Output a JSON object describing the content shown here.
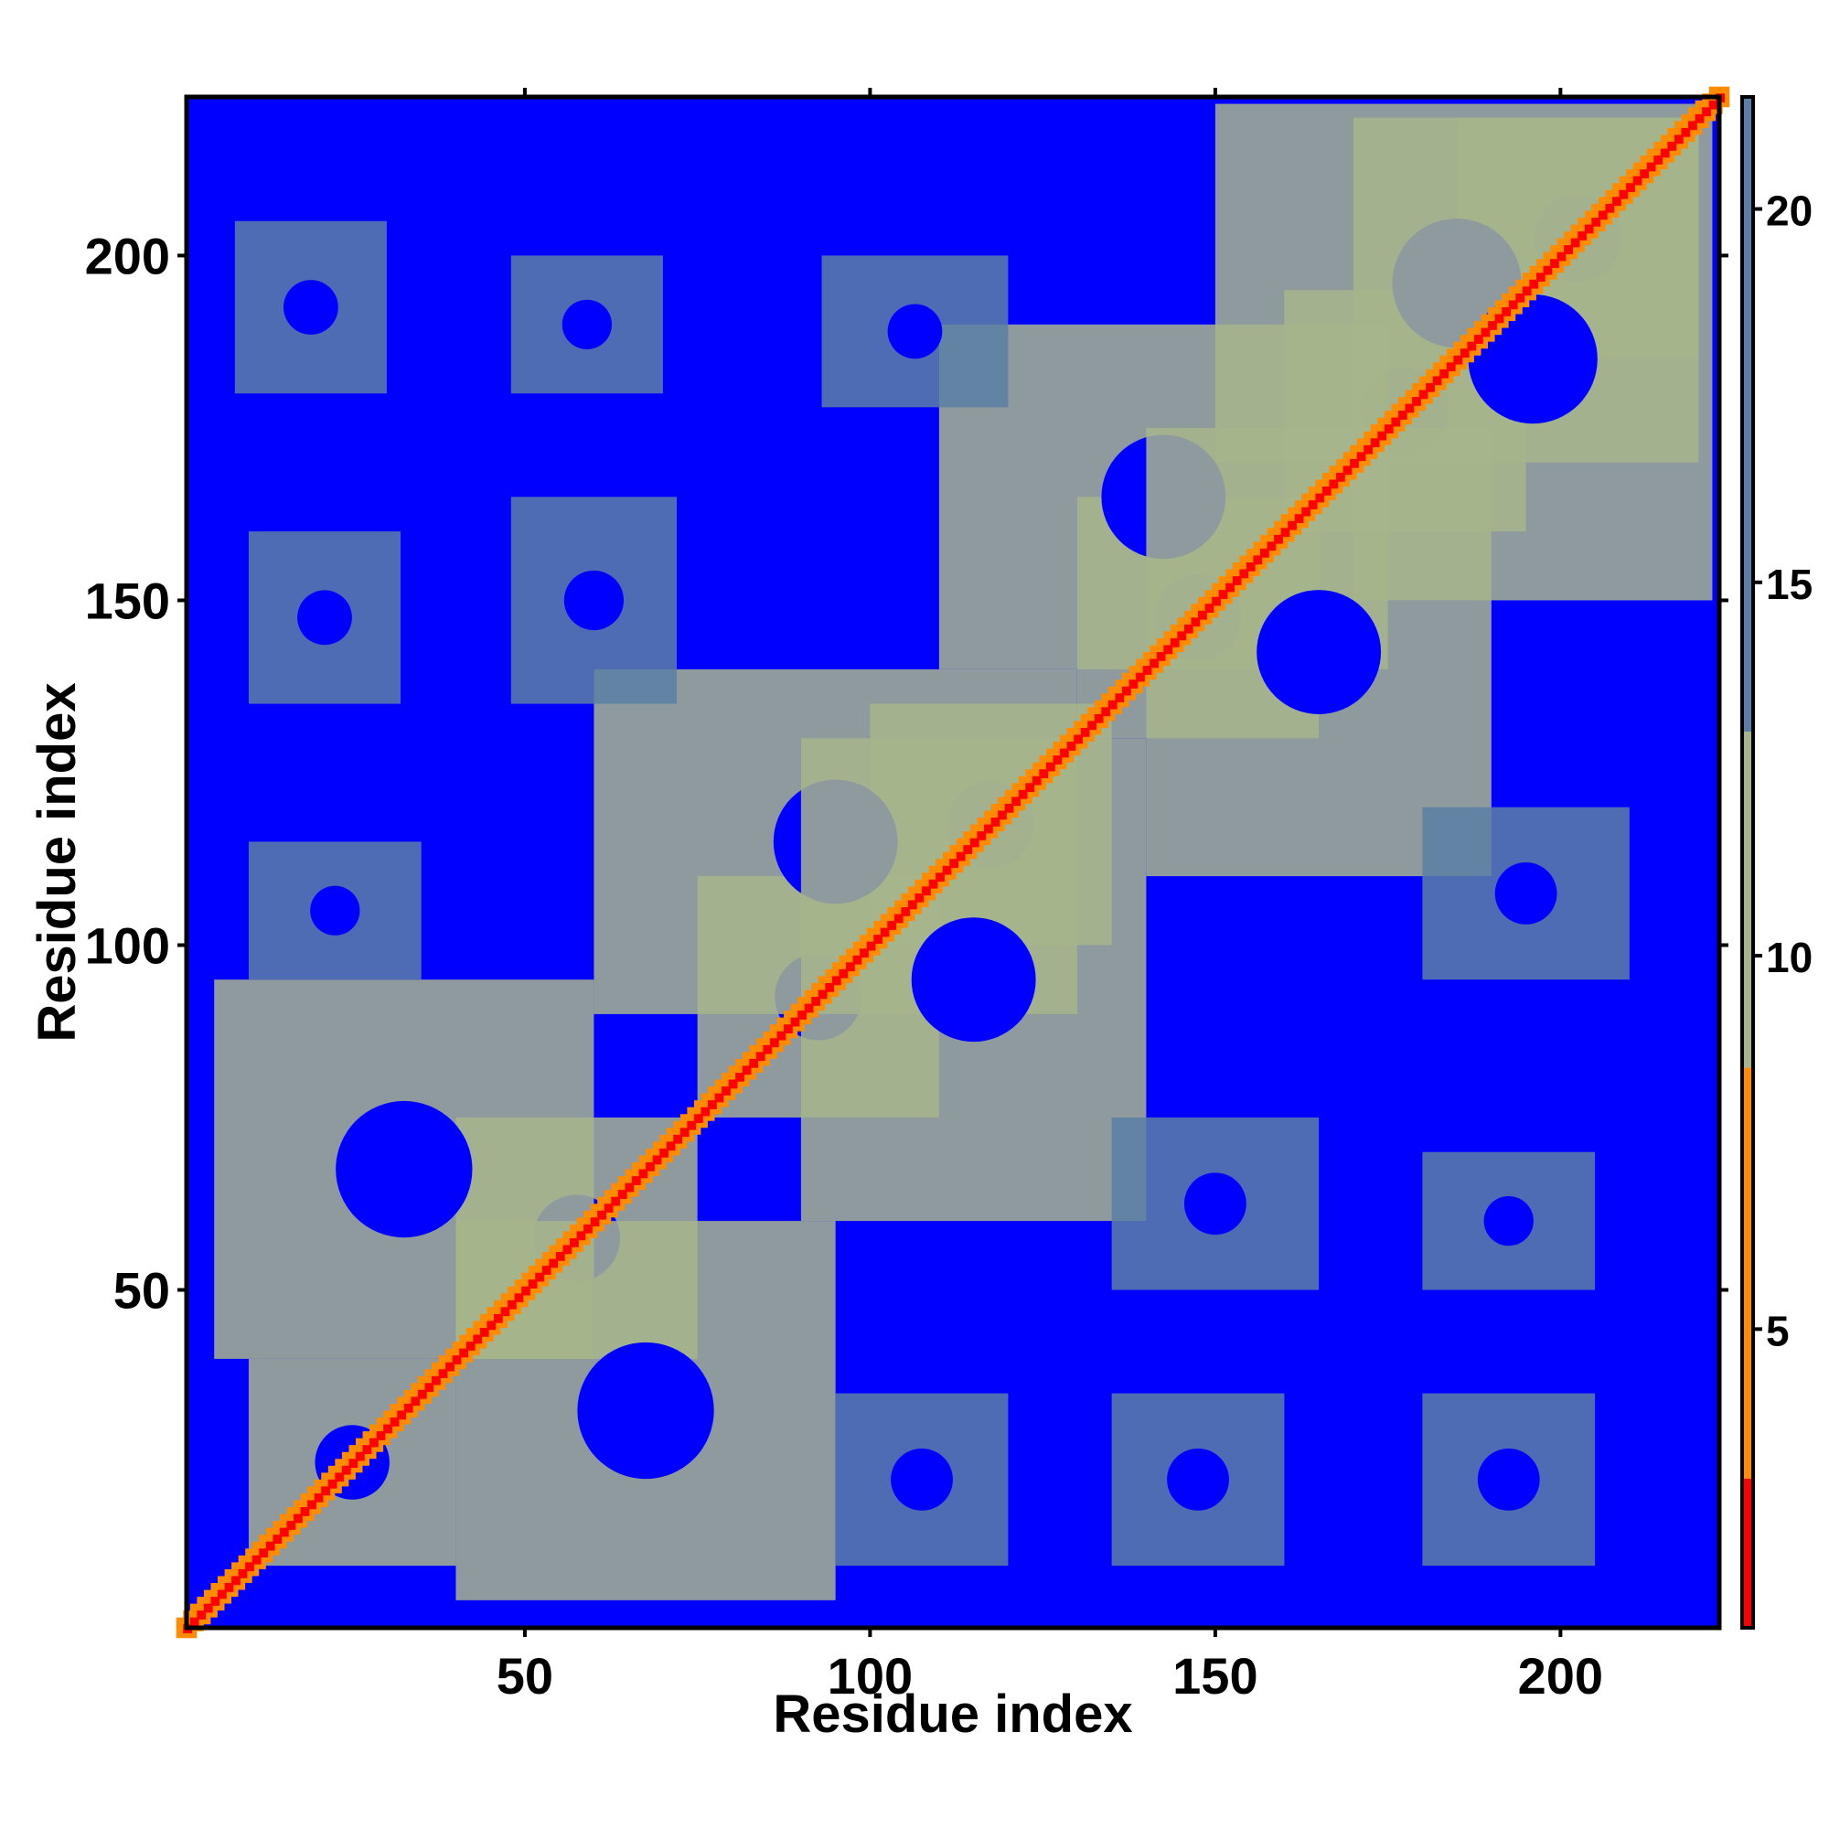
{
  "chart_data": {
    "type": "heatmap",
    "title": "",
    "xlabel": "Residue index",
    "ylabel": "Residue index",
    "xlim": [
      1,
      223
    ],
    "ylim": [
      1,
      223
    ],
    "x_ticks": [
      50,
      100,
      150,
      200
    ],
    "x_tick_labels": [
      "50",
      "100",
      "150",
      "200"
    ],
    "y_ticks": [
      50,
      100,
      150,
      200
    ],
    "y_tick_labels": [
      "50",
      "100",
      "150",
      "200"
    ],
    "colorbar": {
      "range": [
        1,
        21.5
      ],
      "ticks": [
        5,
        10,
        15,
        20
      ],
      "tick_labels": [
        "5",
        "10",
        "15",
        "20"
      ],
      "colors": {
        "near": "#ff0000",
        "mid_near": "#ff8c00",
        "contact": "#a7b58c",
        "far": "#5a7fa6",
        "background": "#0000ff"
      }
    },
    "description_values": {
      "n_residues": 223,
      "background_value": 21.5,
      "diagonal_value": 1.5
    },
    "blocks": [
      {
        "x": [
          10,
          40
        ],
        "y": [
          10,
          40
        ],
        "value": 11
      },
      {
        "x": [
          40,
          75
        ],
        "y": [
          40,
          75
        ],
        "value": 11
      },
      {
        "x": [
          75,
          110
        ],
        "y": [
          75,
          110
        ],
        "value": 11
      },
      {
        "x": [
          100,
          135
        ],
        "y": [
          100,
          135
        ],
        "value": 11
      },
      {
        "x": [
          130,
          165
        ],
        "y": [
          130,
          165
        ],
        "value": 11
      },
      {
        "x": [
          160,
          195
        ],
        "y": [
          160,
          195
        ],
        "value": 11
      },
      {
        "x": [
          185,
          220
        ],
        "y": [
          185,
          220
        ],
        "value": 11
      },
      {
        "x": [
          5,
          60
        ],
        "y": [
          40,
          95
        ],
        "value": 13
      },
      {
        "x": [
          40,
          95
        ],
        "y": [
          5,
          60
        ],
        "value": 13
      },
      {
        "x": [
          60,
          130
        ],
        "y": [
          90,
          140
        ],
        "value": 13
      },
      {
        "x": [
          90,
          140
        ],
        "y": [
          60,
          130
        ],
        "value": 13
      },
      {
        "x": [
          110,
          175
        ],
        "y": [
          140,
          190
        ],
        "value": 13
      },
      {
        "x": [
          140,
          190
        ],
        "y": [
          110,
          175
        ],
        "value": 13
      },
      {
        "x": [
          150,
          220
        ],
        "y": [
          170,
          222
        ],
        "value": 13
      },
      {
        "x": [
          170,
          222
        ],
        "y": [
          150,
          220
        ],
        "value": 13
      },
      {
        "x": [
          8,
          30
        ],
        "y": [
          180,
          205
        ],
        "value": 15
      },
      {
        "x": [
          48,
          70
        ],
        "y": [
          180,
          200
        ],
        "value": 15
      },
      {
        "x": [
          93,
          120
        ],
        "y": [
          178,
          200
        ],
        "value": 15
      },
      {
        "x": [
          10,
          32
        ],
        "y": [
          135,
          160
        ],
        "value": 15
      },
      {
        "x": [
          48,
          72
        ],
        "y": [
          135,
          165
        ],
        "value": 15
      },
      {
        "x": [
          10,
          35
        ],
        "y": [
          95,
          115
        ],
        "value": 15
      },
      {
        "x": [
          180,
          210
        ],
        "y": [
          95,
          120
        ],
        "value": 15
      },
      {
        "x": [
          180,
          205
        ],
        "y": [
          50,
          70
        ],
        "value": 15
      },
      {
        "x": [
          95,
          120
        ],
        "y": [
          10,
          35
        ],
        "value": 15
      },
      {
        "x": [
          135,
          160
        ],
        "y": [
          10,
          35
        ],
        "value": 15
      },
      {
        "x": [
          180,
          205
        ],
        "y": [
          10,
          35
        ],
        "value": 15
      },
      {
        "x": [
          135,
          165
        ],
        "y": [
          50,
          75
        ],
        "value": 15
      }
    ]
  }
}
